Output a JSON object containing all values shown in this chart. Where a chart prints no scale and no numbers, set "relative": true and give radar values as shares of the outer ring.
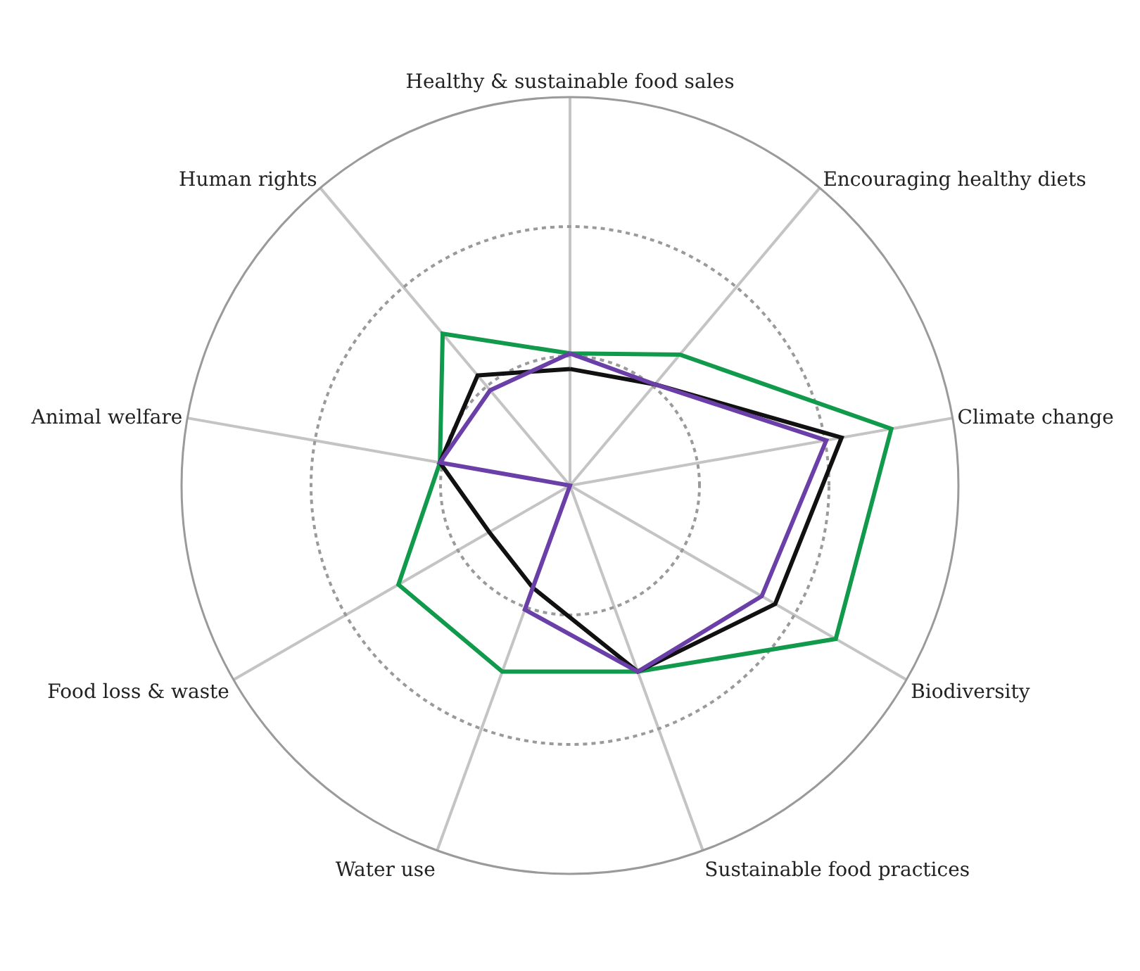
{
  "chart_data": {
    "type": "radar",
    "relative": true,
    "grid": true,
    "marker": "none",
    "line_style": "solid",
    "categories": [
      "Healthy & sustainable food sales",
      "Encouraging healthy diets",
      "Climate change",
      "Biodiversity",
      "Sustainable food practices",
      "Water use",
      "Food loss & waste",
      "Animal welfare",
      "Human rights"
    ],
    "series": [
      {
        "color": "#119a4b",
        "values": [
          0.34,
          0.44,
          0.84,
          0.79,
          0.51,
          0.51,
          0.51,
          0.34,
          0.51
        ]
      },
      {
        "color": "#111111",
        "values": [
          0.3,
          0.34,
          0.71,
          0.61,
          0.51,
          0.28,
          0.24,
          0.34,
          0.37
        ]
      },
      {
        "color": "#6b3fa8",
        "values": [
          0.34,
          0.34,
          0.67,
          0.57,
          0.51,
          0.34,
          0,
          0.34,
          0.32
        ]
      }
    ]
  }
}
